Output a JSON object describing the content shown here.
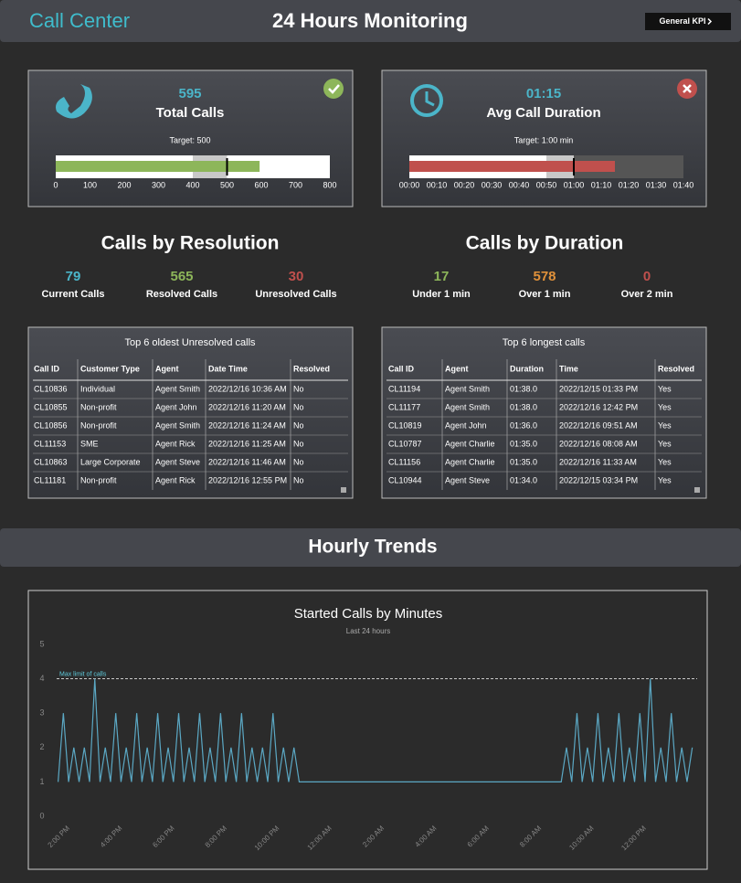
{
  "header": {
    "title": "Call Center",
    "subtitle": "24 Hours Monitoring",
    "button": "General KPI"
  },
  "kpis": [
    {
      "value": 595,
      "label": "Total Calls",
      "target_label": "Target: 500",
      "status": "ok",
      "bullet": {
        "type": "bullet",
        "value": 595,
        "target": 500,
        "color": "#8db65a",
        "xlim": [
          0,
          800
        ],
        "bands": [
          {
            "from": 0,
            "to": 800,
            "color": "#ffffff"
          },
          {
            "from": 400,
            "to": 500,
            "color": "#c8c8c8"
          }
        ],
        "xticks": [
          0,
          100,
          200,
          300,
          400,
          500,
          600,
          700,
          800
        ]
      }
    },
    {
      "value": 75,
      "value_label": "01:15",
      "label": "Avg Call Duration",
      "target_label": "Target: 1:00 min",
      "status": "alert",
      "bullet": {
        "type": "bullet",
        "value": 75,
        "target": 60,
        "color": "#c0504d",
        "xlim": [
          0,
          100
        ],
        "bands": [
          {
            "from": 0,
            "to": 50,
            "color": "#ffffff"
          },
          {
            "from": 50,
            "to": 60,
            "color": "#c8c8c8"
          },
          {
            "from": 60,
            "to": 100,
            "color": "#555555"
          }
        ],
        "xticks": [
          {
            "value": 0,
            "label": "00:00"
          },
          {
            "value": 10,
            "label": "00:10"
          },
          {
            "value": 20,
            "label": "00:20"
          },
          {
            "value": 30,
            "label": "00:30"
          },
          {
            "value": 40,
            "label": "00:40"
          },
          {
            "value": 50,
            "label": "00:50"
          },
          {
            "value": 60,
            "label": "01:00"
          },
          {
            "value": 70,
            "label": "01:10"
          },
          {
            "value": 80,
            "label": "01:20"
          },
          {
            "value": 90,
            "label": "01:30"
          },
          {
            "value": 100,
            "label": "01:40"
          }
        ]
      }
    }
  ],
  "stat_groups": [
    {
      "title": "Calls by Resolution",
      "stats": [
        {
          "value": 79,
          "label": "Current Calls",
          "color": "#4bb5c9"
        },
        {
          "value": 565,
          "label": "Resolved Calls",
          "color": "#8db65a"
        },
        {
          "value": 30,
          "label": "Unresolved Calls",
          "color": "#c0504d"
        }
      ]
    },
    {
      "title": "Calls by Duration",
      "stats": [
        {
          "value": 17,
          "label": "Under 1 min",
          "color": "#8db65a"
        },
        {
          "value": 578,
          "label": "Over 1 min",
          "color": "#e0913a"
        },
        {
          "value": 0,
          "label": "Over 2 min",
          "color": "#c0504d"
        }
      ]
    }
  ],
  "tables": [
    {
      "title": "Top 6 oldest Unresolved calls",
      "columns": [
        "Call ID",
        "Customer Type",
        "Agent",
        "Date Time",
        "Resolved"
      ],
      "rows": [
        [
          "CL10836",
          "Individual",
          "Agent Smith",
          "2022/12/16 10:36 AM",
          "No"
        ],
        [
          "CL10855",
          "Non-profit",
          "Agent John",
          "2022/12/16 11:20 AM",
          "No"
        ],
        [
          "CL10856",
          "Non-profit",
          "Agent Smith",
          "2022/12/16 11:24 AM",
          "No"
        ],
        [
          "CL11153",
          "SME",
          "Agent Rick",
          "2022/12/16 11:25 AM",
          "No"
        ],
        [
          "CL10863",
          "Large Corporate",
          "Agent Steve",
          "2022/12/16 11:46 AM",
          "No"
        ],
        [
          "CL11181",
          "Non-profit",
          "Agent Rick",
          "2022/12/16 12:55 PM",
          "No"
        ]
      ]
    },
    {
      "title": "Top 6 longest calls",
      "columns": [
        "Call ID",
        "Agent",
        "Duration",
        "Time",
        "Resolved"
      ],
      "rows": [
        [
          "CL11194",
          "Agent Smith",
          "01:38.0",
          "2022/12/15 01:33 PM",
          "Yes"
        ],
        [
          "CL11177",
          "Agent Smith",
          "01:38.0",
          "2022/12/16 12:42 PM",
          "Yes"
        ],
        [
          "CL10819",
          "Agent John",
          "01:36.0",
          "2022/12/16 09:51 AM",
          "Yes"
        ],
        [
          "CL10787",
          "Agent Charlie",
          "01:35.0",
          "2022/12/16 08:08 AM",
          "Yes"
        ],
        [
          "CL11156",
          "Agent Charlie",
          "01:35.0",
          "2022/12/16 11:33 AM",
          "Yes"
        ],
        [
          "CL10944",
          "Agent Steve",
          "01:34.0",
          "2022/12/15 03:34 PM",
          "Yes"
        ]
      ]
    }
  ],
  "section_title": "Hourly Trends",
  "chart_data": {
    "type": "line",
    "title": "Started Calls by Minutes",
    "subtitle": "Last 24 hours",
    "color": "#5ba8c4",
    "grid": false,
    "x": [
      13.6,
      13.8,
      14.0,
      14.2,
      14.4,
      14.6,
      14.8,
      15.0,
      15.2,
      15.4,
      15.6,
      15.8,
      16.0,
      16.2,
      16.4,
      16.6,
      16.8,
      17.0,
      17.2,
      17.4,
      17.6,
      17.8,
      18.0,
      18.2,
      18.4,
      18.6,
      18.8,
      19.0,
      19.2,
      19.4,
      19.6,
      19.8,
      20.0,
      20.2,
      20.4,
      20.6,
      20.8,
      21.0,
      21.2,
      21.4,
      21.6,
      21.8,
      22.0,
      22.2,
      22.4,
      22.6,
      22.8,
      23.0,
      32.8,
      33.0,
      33.2,
      33.4,
      33.6,
      33.8,
      34.0,
      34.2,
      34.4,
      34.6,
      34.8,
      35.0,
      35.2,
      35.4,
      35.6,
      35.8,
      36.0,
      36.2,
      36.4,
      36.6,
      36.8,
      37.0,
      37.2,
      37.4,
      37.6,
      37.8
    ],
    "values": [
      1,
      3,
      1,
      2,
      1,
      2,
      1,
      4,
      1,
      2,
      1,
      3,
      1,
      2,
      1,
      3,
      1,
      2,
      1,
      3,
      1,
      2,
      1,
      3,
      1,
      2,
      1,
      3,
      1,
      2,
      1,
      3,
      1,
      2,
      1,
      3,
      1,
      2,
      1,
      2,
      1,
      3,
      1,
      2,
      1,
      2,
      1,
      1,
      1,
      2,
      1,
      3,
      1,
      2,
      1,
      3,
      1,
      2,
      1,
      3,
      1,
      2,
      1,
      3,
      1,
      4,
      1,
      2,
      1,
      3,
      1,
      2,
      1,
      2
    ],
    "xlim": [
      13.3,
      38.3
    ],
    "xticks": [
      {
        "value": 14,
        "label": "2:00 PM"
      },
      {
        "value": 16,
        "label": "4:00 PM"
      },
      {
        "value": 18,
        "label": "6:00 PM"
      },
      {
        "value": 20,
        "label": "8:00 PM"
      },
      {
        "value": 22,
        "label": "10:00 PM"
      },
      {
        "value": 24,
        "label": "12:00 AM"
      },
      {
        "value": 26,
        "label": "2:00 AM"
      },
      {
        "value": 28,
        "label": "4:00 AM"
      },
      {
        "value": 30,
        "label": "6:00 AM"
      },
      {
        "value": 32,
        "label": "8:00 AM"
      },
      {
        "value": 34,
        "label": "10:00 AM"
      },
      {
        "value": 36,
        "label": "12:00 PM"
      }
    ],
    "ylim": [
      0,
      5
    ],
    "yticks": [
      0,
      1,
      2,
      3,
      4,
      5
    ],
    "limit": {
      "value": 4,
      "label": "Max limit of calls"
    }
  }
}
